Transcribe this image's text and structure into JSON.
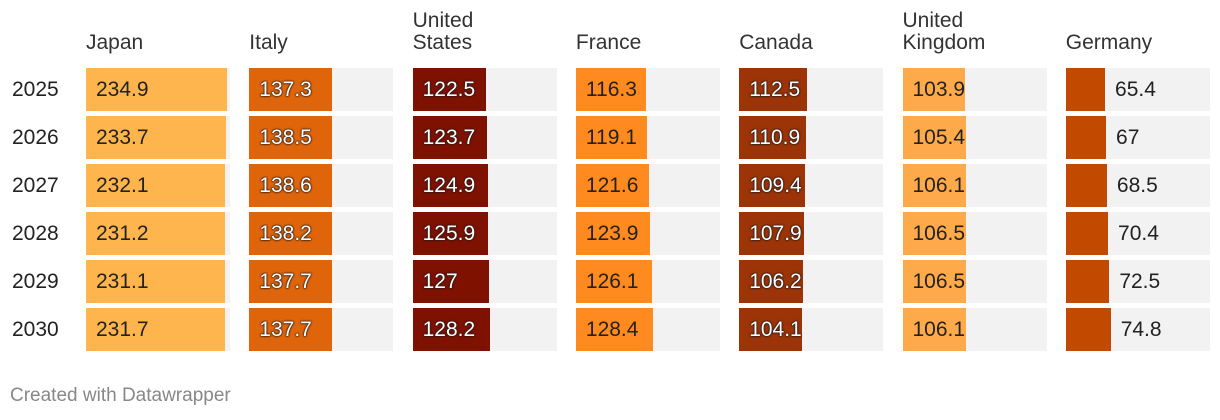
{
  "table": {
    "rows": [
      "2025",
      "2026",
      "2027",
      "2028",
      "2029",
      "2030"
    ],
    "columns": [
      {
        "name": "Japan",
        "color": "#ffb54d",
        "values": [
          234.9,
          233.7,
          232.1,
          231.2,
          231.1,
          231.7
        ]
      },
      {
        "name": "Italy",
        "color": "#e0650a",
        "values": [
          137.3,
          138.5,
          138.6,
          138.2,
          137.7,
          137.7
        ]
      },
      {
        "name": "United States",
        "color": "#7f1100",
        "values": [
          122.5,
          123.7,
          124.9,
          125.9,
          127,
          128.2
        ]
      },
      {
        "name": "France",
        "color": "#ff8a1f",
        "values": [
          116.3,
          119.1,
          121.6,
          123.9,
          126.1,
          128.4
        ]
      },
      {
        "name": "Canada",
        "color": "#9c3408",
        "values": [
          112.5,
          110.9,
          109.4,
          107.9,
          106.2,
          104.1
        ]
      },
      {
        "name": "United Kingdom",
        "color": "#ffaa4a",
        "values": [
          103.9,
          105.4,
          106.1,
          106.5,
          106.5,
          106.1
        ]
      },
      {
        "name": "Germany",
        "color": "#c24a00",
        "values": [
          65.4,
          67,
          68.5,
          70.4,
          72.5,
          74.8
        ]
      }
    ]
  },
  "footer": "Created with Datawrapper"
}
